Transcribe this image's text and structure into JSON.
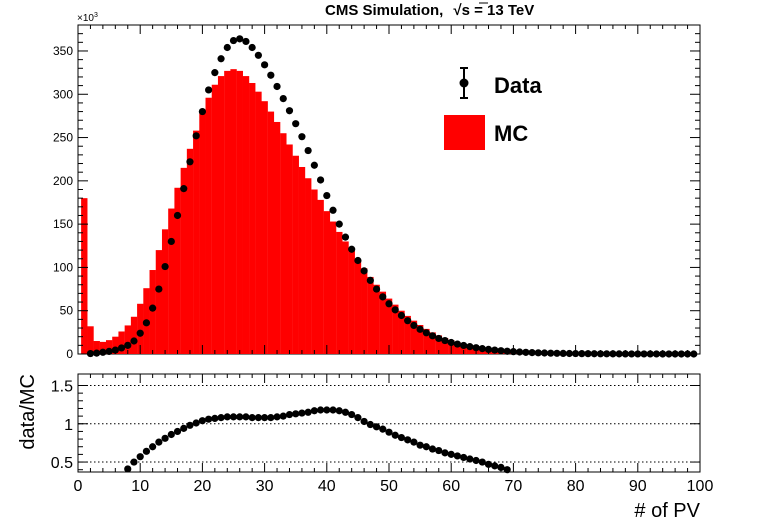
{
  "header": {
    "title_prefix": "CMS Simulation,",
    "sqrt_symbol": "√",
    "title_sqrt_arg": "s",
    "title_suffix": " = 13 TeV"
  },
  "chart_data": [
    {
      "type": "bar",
      "panel": "top",
      "y_multiplier_label": "×10",
      "y_multiplier_exponent": "3",
      "xlim": [
        0,
        100
      ],
      "ylim": [
        0,
        380000
      ],
      "y_ticks": [
        0,
        50,
        100,
        150,
        200,
        250,
        300,
        350
      ],
      "legend": {
        "placement": "top-right"
      },
      "series": [
        {
          "name": "MC",
          "kind": "histogram",
          "color": "#ff0000",
          "bin_width": 1,
          "x": [
            1,
            2,
            3,
            4,
            5,
            6,
            7,
            8,
            9,
            10,
            11,
            12,
            13,
            14,
            15,
            16,
            17,
            18,
            19,
            20,
            21,
            22,
            23,
            24,
            25,
            26,
            27,
            28,
            29,
            30,
            31,
            32,
            33,
            34,
            35,
            36,
            37,
            38,
            39,
            40,
            41,
            42,
            43,
            44,
            45,
            46,
            47,
            48,
            49,
            50,
            51,
            52,
            53,
            54,
            55,
            56,
            57,
            58,
            59,
            60,
            61,
            62,
            63,
            64,
            65,
            66,
            67,
            68,
            69,
            70,
            71,
            72,
            73,
            74,
            75,
            76,
            77,
            78,
            79,
            80,
            81,
            82,
            83,
            84,
            85,
            86,
            87,
            88,
            89,
            90,
            91,
            92,
            93,
            94,
            95,
            96,
            97,
            98,
            99
          ],
          "values": [
            180000,
            32000,
            15000,
            14000,
            16000,
            20000,
            26000,
            33000,
            43000,
            58000,
            76000,
            97000,
            120000,
            144000,
            168000,
            192000,
            215000,
            237000,
            258000,
            278000,
            296000,
            311000,
            321000,
            327000,
            329000,
            327000,
            321000,
            313000,
            303000,
            292000,
            280000,
            268000,
            255000,
            242000,
            229000,
            216000,
            203000,
            190000,
            178000,
            165000,
            153000,
            141000,
            130000,
            119000,
            109000,
            99000,
            89000,
            80000,
            72000,
            64000,
            57000,
            50000,
            44000,
            38500,
            33500,
            29000,
            25000,
            21500,
            18500,
            16000,
            13500,
            11500,
            9700,
            8200,
            6900,
            5800,
            4900,
            4100,
            3400,
            2800,
            2300,
            1900,
            1600,
            1300,
            1100,
            900,
            750,
            620,
            510,
            420,
            350,
            290,
            240,
            200,
            160,
            130,
            110,
            90,
            70,
            60,
            50,
            40,
            30,
            25,
            20,
            15,
            12,
            10,
            8
          ]
        },
        {
          "name": "Data",
          "kind": "points",
          "color": "#000000",
          "x": [
            2,
            3,
            4,
            5,
            6,
            7,
            8,
            9,
            10,
            11,
            12,
            13,
            14,
            15,
            16,
            17,
            18,
            19,
            20,
            21,
            22,
            23,
            24,
            25,
            26,
            27,
            28,
            29,
            30,
            31,
            32,
            33,
            34,
            35,
            36,
            37,
            38,
            39,
            40,
            41,
            42,
            43,
            44,
            45,
            46,
            47,
            48,
            49,
            50,
            51,
            52,
            53,
            54,
            55,
            56,
            57,
            58,
            59,
            60,
            61,
            62,
            63,
            64,
            65,
            66,
            67,
            68,
            69,
            70,
            71,
            72,
            73,
            74,
            75,
            76,
            77,
            78,
            79,
            80,
            81,
            82,
            83,
            84,
            85,
            86,
            87,
            88,
            89,
            90,
            91,
            92,
            93,
            94,
            95,
            96,
            97,
            98,
            99
          ],
          "values": [
            500,
            1000,
            2000,
            3000,
            4500,
            7000,
            10000,
            15000,
            24000,
            36000,
            53000,
            75000,
            101000,
            130000,
            160000,
            191000,
            222000,
            252000,
            280000,
            305000,
            325000,
            341000,
            354000,
            362000,
            364000,
            361000,
            354000,
            345000,
            334000,
            322000,
            309000,
            295000,
            281000,
            266000,
            251000,
            235000,
            218000,
            201000,
            183000,
            166000,
            150000,
            135000,
            121000,
            108000,
            96000,
            85000,
            75000,
            66000,
            58000,
            51000,
            44500,
            38500,
            33000,
            28500,
            24500,
            21000,
            18000,
            15500,
            13300,
            11500,
            9900,
            8500,
            7300,
            6200,
            5300,
            4500,
            3800,
            3200,
            2700,
            2300,
            1900,
            1600,
            1350,
            1150,
            950,
            800,
            680,
            570,
            480,
            400,
            340,
            290,
            240,
            200,
            170,
            140,
            120,
            100,
            85,
            70,
            60,
            50,
            40,
            33,
            27,
            22,
            18,
            15
          ]
        }
      ]
    },
    {
      "type": "scatter",
      "panel": "ratio",
      "xlabel": "# of PV",
      "ylabel": "data/MC",
      "xlim": [
        0,
        100
      ],
      "ylim": [
        0.37,
        1.65
      ],
      "x_ticks": [
        0,
        10,
        20,
        30,
        40,
        50,
        60,
        70,
        80,
        90,
        100
      ],
      "y_ticks": [
        0.5,
        1,
        1.5
      ],
      "y_tick_labels": [
        "0.5",
        "1",
        "1.5"
      ],
      "reference_lines": [
        0.5,
        1,
        1.5
      ],
      "series": [
        {
          "color": "#000000",
          "x": [
            8,
            9,
            10,
            11,
            12,
            13,
            14,
            15,
            16,
            17,
            18,
            19,
            20,
            21,
            22,
            23,
            24,
            25,
            26,
            27,
            28,
            29,
            30,
            31,
            32,
            33,
            34,
            35,
            36,
            37,
            38,
            39,
            40,
            41,
            42,
            43,
            44,
            45,
            46,
            47,
            48,
            49,
            50,
            51,
            52,
            53,
            54,
            55,
            56,
            57,
            58,
            59,
            60,
            61,
            62,
            63,
            64,
            65,
            66,
            67,
            68,
            69
          ],
          "values": [
            0.41,
            0.5,
            0.57,
            0.64,
            0.7,
            0.76,
            0.81,
            0.86,
            0.9,
            0.94,
            0.98,
            1.01,
            1.04,
            1.06,
            1.07,
            1.08,
            1.09,
            1.09,
            1.09,
            1.09,
            1.08,
            1.08,
            1.08,
            1.08,
            1.09,
            1.1,
            1.12,
            1.13,
            1.14,
            1.15,
            1.17,
            1.18,
            1.18,
            1.18,
            1.17,
            1.15,
            1.12,
            1.08,
            1.03,
            0.99,
            0.96,
            0.93,
            0.89,
            0.85,
            0.82,
            0.79,
            0.76,
            0.72,
            0.7,
            0.67,
            0.65,
            0.62,
            0.6,
            0.58,
            0.56,
            0.54,
            0.52,
            0.5,
            0.47,
            0.45,
            0.43,
            0.4
          ]
        }
      ]
    }
  ]
}
